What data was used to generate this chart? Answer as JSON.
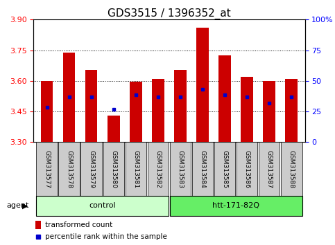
{
  "title": "GDS3515 / 1396352_at",
  "samples": [
    "GSM313577",
    "GSM313578",
    "GSM313579",
    "GSM313580",
    "GSM313581",
    "GSM313582",
    "GSM313583",
    "GSM313584",
    "GSM313585",
    "GSM313586",
    "GSM313587",
    "GSM313588"
  ],
  "bar_values": [
    3.6,
    3.74,
    3.655,
    3.43,
    3.595,
    3.61,
    3.655,
    3.86,
    3.725,
    3.62,
    3.6,
    3.61
  ],
  "blue_values": [
    3.47,
    3.52,
    3.52,
    3.46,
    3.53,
    3.52,
    3.52,
    3.56,
    3.53,
    3.52,
    3.49,
    3.52
  ],
  "ymin": 3.3,
  "ymax": 3.9,
  "yticks_left": [
    3.3,
    3.45,
    3.6,
    3.75,
    3.9
  ],
  "yticks_right_vals": [
    3.3,
    3.45,
    3.6,
    3.75,
    3.9
  ],
  "yticks_right_labels": [
    "0",
    "25",
    "50",
    "75",
    "100%"
  ],
  "bar_color": "#cc0000",
  "blue_color": "#0000cc",
  "bar_bottom": 3.3,
  "n_control": 6,
  "n_treat": 6,
  "control_label": "control",
  "treatment_label": "htt-171-82Q",
  "agent_label": "agent",
  "legend_bar_label": "transformed count",
  "legend_blue_label": "percentile rank within the sample",
  "control_color_light": "#ccffcc",
  "control_color_dark": "#66ee66",
  "group_box_color": "#cccccc",
  "title_fontsize": 11,
  "tick_fontsize": 8,
  "sample_fontsize": 6.5
}
